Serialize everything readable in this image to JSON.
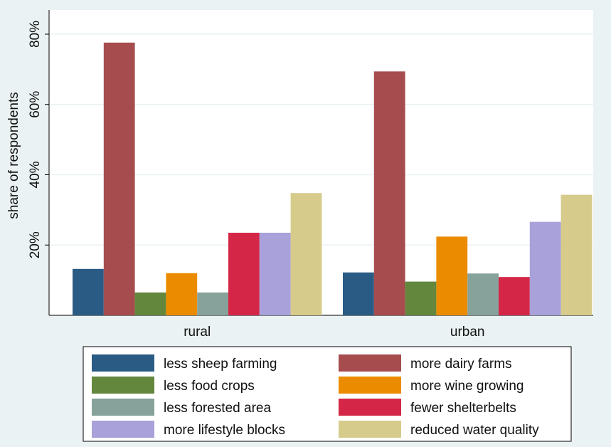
{
  "chart_data": {
    "type": "bar",
    "title": "",
    "xlabel": "",
    "ylabel": "share of respondents",
    "ylim": [
      0,
      0.8
    ],
    "yticks": [
      0.2,
      0.4,
      0.6,
      0.8
    ],
    "ytick_labels": [
      "20%",
      "40%",
      "60%",
      "80%"
    ],
    "grid": true,
    "legend_position": "bottom",
    "categories": [
      "rural",
      "urban"
    ],
    "series": [
      {
        "name": "less sheep farming",
        "color": "#2a5b84",
        "values": [
          0.132,
          0.122
        ]
      },
      {
        "name": "more dairy farms",
        "color": "#a64c4e",
        "values": [
          0.776,
          0.694
        ]
      },
      {
        "name": "less food crops",
        "color": "#63873d",
        "values": [
          0.065,
          0.096
        ]
      },
      {
        "name": "more wine growing",
        "color": "#eb8c00",
        "values": [
          0.12,
          0.224
        ]
      },
      {
        "name": "less forested area",
        "color": "#86a29a",
        "values": [
          0.065,
          0.119
        ]
      },
      {
        "name": "fewer shelterbelts",
        "color": "#d42748",
        "values": [
          0.235,
          0.109
        ]
      },
      {
        "name": "more lifestyle blocks",
        "color": "#a8a1da",
        "values": [
          0.235,
          0.266
        ]
      },
      {
        "name": "reduced water quality",
        "color": "#d7cb8c",
        "values": [
          0.348,
          0.343
        ]
      }
    ]
  }
}
